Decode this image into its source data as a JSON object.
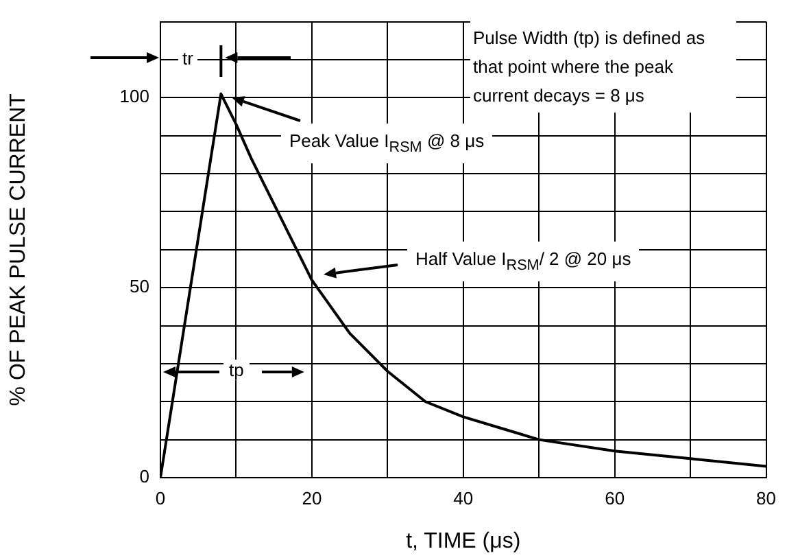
{
  "chart_data": {
    "type": "line",
    "xlabel": "t, TIME (μs)",
    "ylabel": "% OF PEAK PULSE CURRENT",
    "x": [
      0,
      8,
      10,
      12,
      15,
      18,
      20,
      25,
      30,
      35,
      40,
      45,
      50,
      60,
      70,
      80
    ],
    "series": [
      {
        "color": "#000000",
        "values": [
          0,
          101,
          93,
          84,
          72,
          60,
          52,
          38,
          28,
          20,
          16,
          13,
          10,
          7,
          5,
          3
        ]
      }
    ],
    "xlim": [
      0,
      80
    ],
    "xticks": [
      0,
      {
        "value": 10,
        "label": null
      },
      20,
      {
        "value": 30,
        "label": null
      },
      40,
      {
        "value": 50,
        "label": null
      },
      60,
      {
        "value": 70,
        "label": null
      },
      80
    ],
    "ylim": [
      0,
      120
    ],
    "yticks": [
      0,
      {
        "value": 10,
        "label": null
      },
      {
        "value": 20,
        "label": null
      },
      {
        "value": 30,
        "label": null
      },
      {
        "value": 40,
        "label": null
      },
      50,
      {
        "value": 60,
        "label": null
      },
      {
        "value": 70,
        "label": null
      },
      {
        "value": 80,
        "label": null
      },
      {
        "value": 90,
        "label": null
      },
      100,
      {
        "value": 110,
        "label": null
      },
      {
        "value": 120,
        "label": null
      }
    ],
    "grid": true,
    "legend": false,
    "marker": "none",
    "line_style": "solid",
    "annotations": [
      "Pulse Width (tp) is defined as that point where the peak current decays = 8 μs",
      "Peak Value I$_{RSM}$  @ 8 μs",
      "Half Value  I$_{RSM}$/ 2  @ 20 μs",
      "tr",
      "tp"
    ]
  }
}
